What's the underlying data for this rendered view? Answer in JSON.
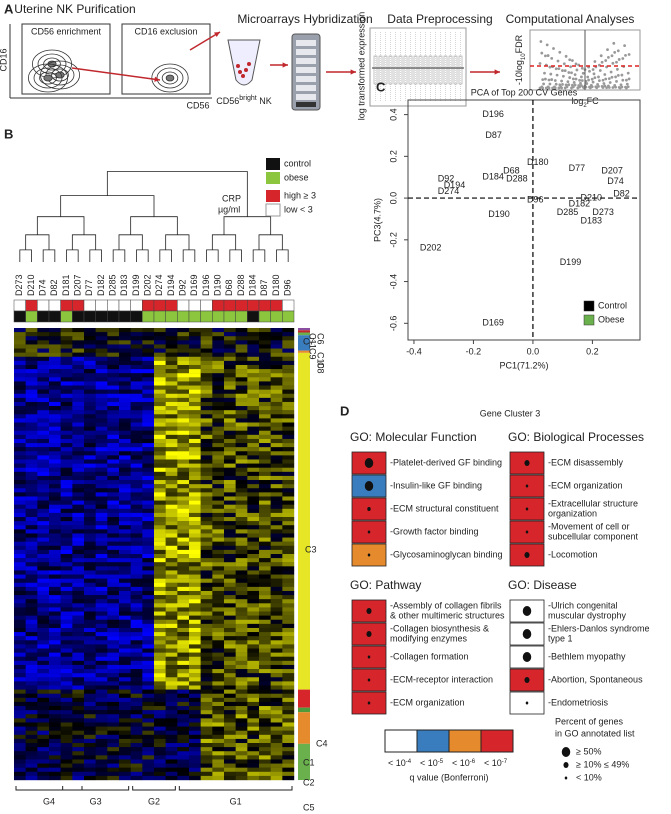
{
  "panel_a": {
    "letter": "A",
    "steps": [
      "Uterine NK Purification",
      "Microarrays Hybridization",
      "Data Preprocessing",
      "Computational Analyses"
    ],
    "flow": {
      "left": "CD56 enrichment",
      "right": "CD16 exclusion",
      "y_axis": "CD16",
      "x_axis": "CD56"
    },
    "cells": {
      "base": "CD56",
      "sup": "bright",
      "rest": " NK"
    },
    "boxplot_y": "log transformed expression",
    "volcano": {
      "y": "-10log",
      "y_sub": "10",
      "y_rest": "FDR",
      "x": "log",
      "x_sub": "2",
      "x_rest": "FC"
    }
  },
  "panel_b": {
    "letter": "B",
    "legend": {
      "control": "control",
      "obese": "obese",
      "crp": "CRP",
      "unit": "µg/ml",
      "high": "high ≥ 3",
      "low": "low < 3"
    },
    "samples": [
      "D273",
      "D210",
      "D74",
      "D82",
      "D181",
      "D207",
      "D77",
      "D182",
      "D285",
      "D183",
      "D199",
      "D202",
      "D274",
      "D194",
      "D92",
      "D169",
      "D196",
      "D190",
      "D68",
      "D288",
      "D184",
      "D87",
      "D180",
      "D96"
    ],
    "clusters": [
      "C11",
      "C6",
      "C9",
      "C10",
      "C8",
      "C7",
      "C3",
      "C1",
      "C4",
      "C2",
      "C5"
    ],
    "groups": [
      "G4",
      "G3",
      "G2",
      "G1"
    ]
  },
  "chart_data": {
    "type": "scatter",
    "letter": "C",
    "title": "PCA of Top 200 CV Genes",
    "x_label": "PC1(71.2%)",
    "y_label": "PC3(4.7%)",
    "xlim": [
      -0.42,
      0.36
    ],
    "ylim": [
      -0.68,
      0.47
    ],
    "xticks": [
      -0.4,
      -0.2,
      {
        "value": 0,
        "label": "0.0"
      },
      0.2
    ],
    "yticks": [
      -0.6,
      -0.4,
      -0.2,
      {
        "value": 0,
        "label": "0.0"
      },
      0.2,
      0.4
    ],
    "legend": "bottom-right",
    "series": [
      {
        "name": "Control",
        "color": "#000000",
        "labels": [
          "D184",
          "D274",
          "D77",
          "D207",
          "D74",
          "D82",
          "D182",
          "D285",
          "D273",
          "D183",
          "D190",
          "D199",
          "D202"
        ],
        "x": [
          -0.17,
          -0.32,
          0.12,
          0.23,
          0.25,
          0.27,
          0.12,
          0.08,
          0.2,
          0.16,
          -0.15,
          0.09,
          -0.38
        ],
        "y": [
          0.1,
          0.03,
          0.14,
          0.13,
          0.08,
          0.02,
          -0.03,
          -0.07,
          -0.07,
          -0.11,
          -0.08,
          -0.31,
          -0.24
        ]
      },
      {
        "name": "Obese",
        "color": "#6ab04c",
        "labels": [
          "D196",
          "D87",
          "D180",
          "D68",
          "D288",
          "D92",
          "D194",
          "D96",
          "D210",
          "D169"
        ],
        "x": [
          -0.17,
          -0.16,
          -0.02,
          -0.1,
          -0.09,
          -0.32,
          -0.3,
          -0.02,
          0.16,
          -0.17
        ],
        "y": [
          0.4,
          0.3,
          0.17,
          0.13,
          0.09,
          0.09,
          0.06,
          -0.01,
          0.0,
          -0.6
        ]
      }
    ]
  },
  "panel_d": {
    "letter": "D",
    "title": "Gene Cluster 3",
    "sections": [
      {
        "title": "GO: Molecular Function",
        "items": [
          [
            "-Platelet-derived GF binding"
          ],
          [
            "-Insulin-like GF binding"
          ],
          [
            "-ECM structural constituent"
          ],
          [
            "-Growth factor binding"
          ],
          [
            "-Glycosaminoglycan binding"
          ]
        ]
      },
      {
        "title": "GO: Biological Processes",
        "items": [
          [
            "-ECM disassembly"
          ],
          [
            "-ECM organization"
          ],
          [
            "-Extracellular structure",
            "organization"
          ],
          [
            "-Movement of cell or",
            "subcellular component"
          ],
          [
            "-Locomotion"
          ]
        ]
      },
      {
        "title": "GO: Pathway",
        "items": [
          [
            "-Assembly of collagen fibrils",
            "& other multimeric structures"
          ],
          [
            "-Collagen biosynthesis &",
            "modifying enzymes"
          ],
          [
            "-Collagen formation"
          ],
          [
            "-ECM-receptor interaction"
          ],
          [
            "-ECM organization"
          ]
        ]
      },
      {
        "title": "GO: Disease",
        "items": [
          [
            "-Ulrich congenital",
            "muscular dystrophy"
          ],
          [
            "-Ehlers-Danlos syndrome",
            "type 1"
          ],
          [
            "-Bethlem myopathy"
          ],
          [
            "-Abortion, Spontaneous"
          ],
          [
            "-Endometriosis"
          ]
        ]
      }
    ],
    "q_labels": [
      "< 10",
      "-4",
      "< 10",
      "-5",
      "< 10",
      "-6",
      "< 10",
      "-7"
    ],
    "q_title": "q value (Bonferroni)",
    "pct_title": [
      "Percent of genes",
      "in GO annotated list"
    ],
    "pct_items": [
      "≥ 50%",
      "≥ 10% ≤ 49%",
      "< 10%"
    ]
  }
}
